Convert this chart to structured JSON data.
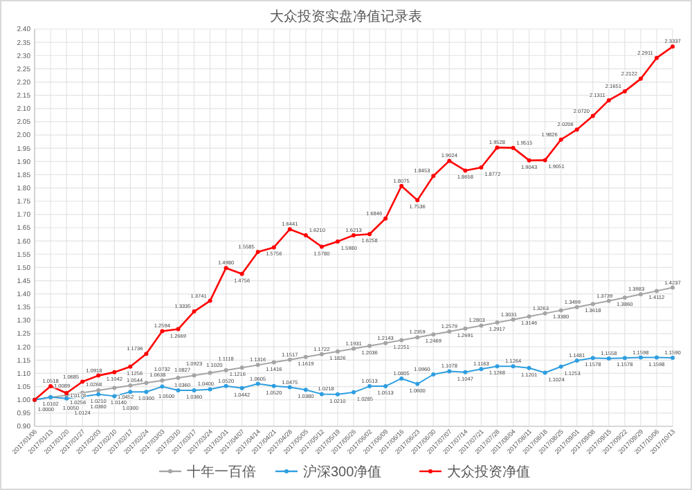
{
  "chart_data": {
    "type": "line",
    "title": "大众投资实盘净值记录表",
    "categories": [
      "2017/01/06",
      "2017/01/13",
      "2017/01/20",
      "2017/01/27",
      "2017/02/03",
      "2017/02/10",
      "2017/02/17",
      "2017/02/24",
      "2017/03/03",
      "2017/03/10",
      "2017/03/17",
      "2017/03/24",
      "2017/03/31",
      "2017/04/07",
      "2017/04/14",
      "2017/04/21",
      "2017/04/28",
      "2017/05/05",
      "2017/05/12",
      "2017/05/19",
      "2017/05/26",
      "2017/06/02",
      "2017/06/09",
      "2017/06/16",
      "2017/06/23",
      "2017/06/30",
      "2017/07/07",
      "2017/07/14",
      "2017/07/21",
      "2017/07/28",
      "2017/08/04",
      "2017/08/11",
      "2017/08/18",
      "2017/08/25",
      "2017/09/01",
      "2017/09/08",
      "2017/09/15",
      "2017/09/22",
      "2017/09/29",
      "2017/10/06",
      "2017/10/13"
    ],
    "series": [
      {
        "name": "十年一百倍",
        "color": "#a5a5a5",
        "values": [
          1.0,
          1.0089,
          1.0178,
          1.0268,
          1.036,
          1.0452,
          1.0544,
          1.0638,
          1.0732,
          1.0827,
          1.0923,
          1.102,
          1.1118,
          1.1216,
          1.1316,
          1.1416,
          1.1517,
          1.1619,
          1.1722,
          1.1826,
          1.1931,
          1.2036,
          1.2143,
          1.2251,
          1.2359,
          1.2469,
          1.2579,
          1.2691,
          1.2803,
          1.2917,
          1.3031,
          1.3146,
          1.3263,
          1.338,
          1.3499,
          1.3618,
          1.3739,
          1.386,
          1.3983,
          1.4112,
          1.4237
        ],
        "value_labels": [
          "1.0000",
          "1.0089",
          "1.0178",
          "1.0268",
          "1.0360",
          "1.0452",
          "1.0544",
          "1.0638",
          "1.0732",
          "1.0827",
          "1.0923",
          "1.1020",
          "1.1118",
          "1.1216",
          "1.1316",
          "1.1416",
          "1.1517",
          "1.1619",
          "1.1722",
          "1.1826",
          "1.1931",
          "1.2036",
          "1.2143",
          "1.2251",
          "1.2359",
          "1.2469",
          "1.2579",
          "1.2691",
          "1.2803",
          "1.2917",
          "1.3031",
          "1.3146",
          "1.3263",
          "1.3380",
          "1.3499",
          "1.3618",
          "1.3739",
          "1.3860",
          "1.3983",
          "1.4112",
          "1.4237"
        ]
      },
      {
        "name": "沪深300净值",
        "color": "#2e9ee0",
        "values": [
          1.0,
          1.0102,
          1.005,
          1.0124,
          1.021,
          1.014,
          1.03,
          1.03,
          1.05,
          1.036,
          1.036,
          1.04,
          1.052,
          1.0442,
          1.0605,
          1.052,
          1.0475,
          1.038,
          1.0218,
          1.021,
          1.0285,
          1.0513,
          1.0513,
          1.0805,
          1.06,
          1.096,
          1.1078,
          1.1047,
          1.1163,
          1.1268,
          1.1264,
          1.1201,
          1.1024,
          1.1253,
          1.1481,
          1.1578,
          1.1558,
          1.1578,
          1.1598,
          1.1598,
          1.159
        ],
        "value_labels": [
          null,
          "1.0102",
          "1.0050",
          "1.0124",
          "1.0210",
          "1.0140",
          "1.0300",
          "1.0300",
          "1.0500",
          "1.0360",
          "1.0360",
          "1.0400",
          "1.0520",
          "1.0442",
          "1.0605",
          "1.0520",
          "1.0475",
          "1.0380",
          "1.0218",
          "1.0210",
          "1.0285",
          "1.0513",
          "1.0513",
          "1.0805",
          "1.0600",
          "1.0960",
          "1.1078",
          "1.1047",
          "1.1163",
          "1.1268",
          "1.1264",
          "1.1201",
          "1.1024",
          "1.1253",
          "1.1481",
          "1.1578",
          "1.1558",
          "1.1578",
          "1.1598",
          "1.1598",
          "1.1590"
        ]
      },
      {
        "name": "大众投资净值",
        "color": "#ff0000",
        "values": [
          1.0,
          1.0518,
          1.0256,
          1.0685,
          1.0918,
          1.1042,
          1.1256,
          1.1736,
          1.2594,
          1.2669,
          1.3335,
          1.3741,
          1.498,
          1.4756,
          1.5585,
          1.5756,
          1.6441,
          1.621,
          1.578,
          1.598,
          1.6213,
          1.6258,
          1.6846,
          1.8075,
          1.7536,
          1.8453,
          1.9024,
          1.8658,
          1.8772,
          1.9528,
          1.9515,
          1.9043,
          1.9051,
          1.9826,
          2.0206,
          2.072,
          2.1311,
          2.1651,
          2.2122,
          2.2911,
          2.3337
        ],
        "value_labels": [
          null,
          "1.0518",
          "1.0256",
          "1.0685",
          "1.0918",
          "1.1042",
          "1.1256",
          "1.1736",
          "1.2594",
          "1.2669",
          "1.3335",
          "1.3741",
          "1.4980",
          "1.4756",
          "1.5585",
          "1.5756",
          "1.6441",
          "1.6210",
          "1.5780",
          "1.5980",
          "1.6213",
          "1.6258",
          "1.6846",
          "1.8075",
          "1.7536",
          "1.8453",
          "1.9024",
          "1.8658",
          "1.8772",
          "1.9528",
          "1.9515",
          "1.9043",
          "1.9051",
          "1.9826",
          "2.0206",
          "2.0720",
          "2.1311",
          "2.1651",
          "2.2122",
          "2.2911",
          "2.3337"
        ]
      }
    ],
    "ylim": [
      0.9,
      2.4
    ],
    "yticks": [
      {
        "value": 0.9,
        "label": "0.90"
      },
      {
        "value": 0.95,
        "label": "0.95"
      },
      {
        "value": 1.0,
        "label": "1.00"
      },
      {
        "value": 1.05,
        "label": "1.05"
      },
      {
        "value": 1.1,
        "label": "1.10"
      },
      {
        "value": 1.15,
        "label": "1.15"
      },
      {
        "value": 1.2,
        "label": "1.20"
      },
      {
        "value": 1.25,
        "label": "1.25"
      },
      {
        "value": 1.3,
        "label": "1.30"
      },
      {
        "value": 1.35,
        "label": "1.35"
      },
      {
        "value": 1.4,
        "label": "1.40"
      },
      {
        "value": 1.45,
        "label": "1.45"
      },
      {
        "value": 1.5,
        "label": "1.50"
      },
      {
        "value": 1.55,
        "label": "1.55"
      },
      {
        "value": 1.6,
        "label": "1.60"
      },
      {
        "value": 1.65,
        "label": "1.65"
      },
      {
        "value": 1.7,
        "label": "1.70"
      },
      {
        "value": 1.75,
        "label": "1.75"
      },
      {
        "value": 1.8,
        "label": "1.80"
      },
      {
        "value": 1.85,
        "label": "1.85"
      },
      {
        "value": 1.9,
        "label": "1.90"
      },
      {
        "value": 1.95,
        "label": "1.95"
      },
      {
        "value": 2.0,
        "label": "2.00"
      },
      {
        "value": 2.05,
        "label": "2.05"
      },
      {
        "value": 2.1,
        "label": "2.10"
      },
      {
        "value": 2.15,
        "label": "2.15"
      },
      {
        "value": 2.2,
        "label": "2.20"
      },
      {
        "value": 2.25,
        "label": "2.25"
      },
      {
        "value": 2.3,
        "label": "2.30"
      },
      {
        "value": 2.35,
        "label": "2.35"
      },
      {
        "value": 2.4,
        "label": "2.40"
      }
    ],
    "grid": true,
    "legend": "bottom",
    "marker": "circle",
    "line_style": "solid"
  }
}
